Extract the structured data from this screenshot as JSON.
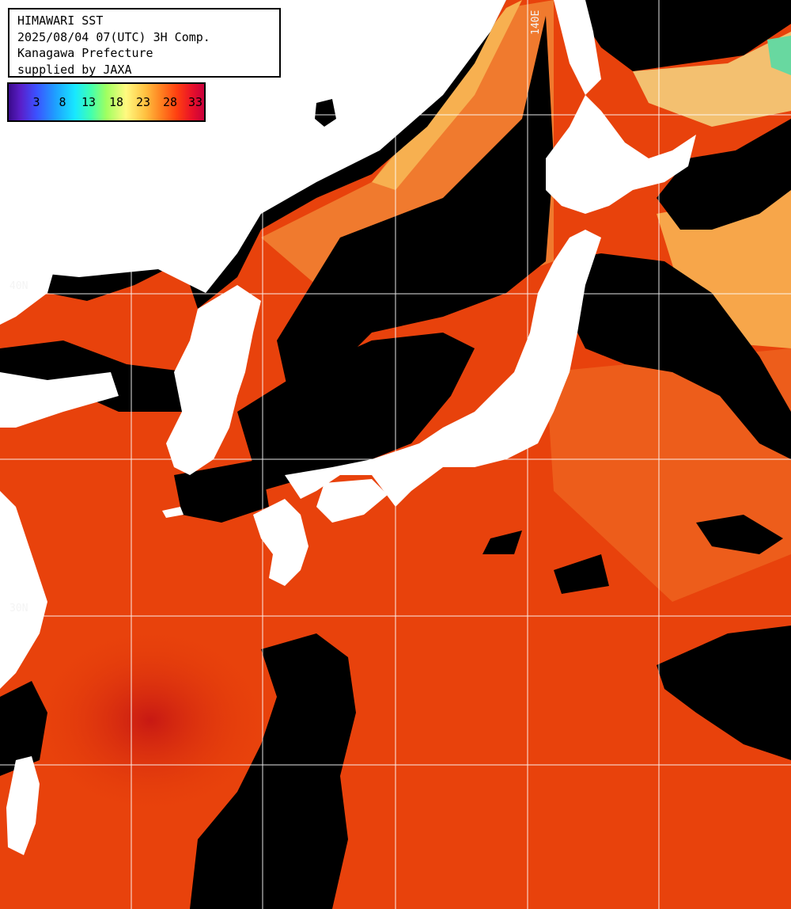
{
  "header": {
    "title": "HIMAWARI SST",
    "datetime": "2025/08/04 07(UTC) 3H Comp.",
    "region": "Kanagawa Prefecture",
    "credit": "supplied by JAXA"
  },
  "legend": {
    "values": [
      "3",
      "8",
      "13",
      "18",
      "23",
      "28",
      "33"
    ],
    "colors": [
      "#3a0a8c",
      "#3c50ff",
      "#18e8ff",
      "#a0ff60",
      "#ffc040",
      "#ff4010",
      "#c8003c"
    ]
  },
  "grid_labels": {
    "lon_140": "140E",
    "lat_40": "40N",
    "lat_30": "30N"
  },
  "colors": {
    "land": "#ffffff",
    "cloud": "#000000",
    "sea_warm": "#e8400a",
    "sea_hot": "#d21a14",
    "sea_mild": "#f5a040",
    "sea_cool": "#7ee87e",
    "grid": "#ffffff"
  }
}
